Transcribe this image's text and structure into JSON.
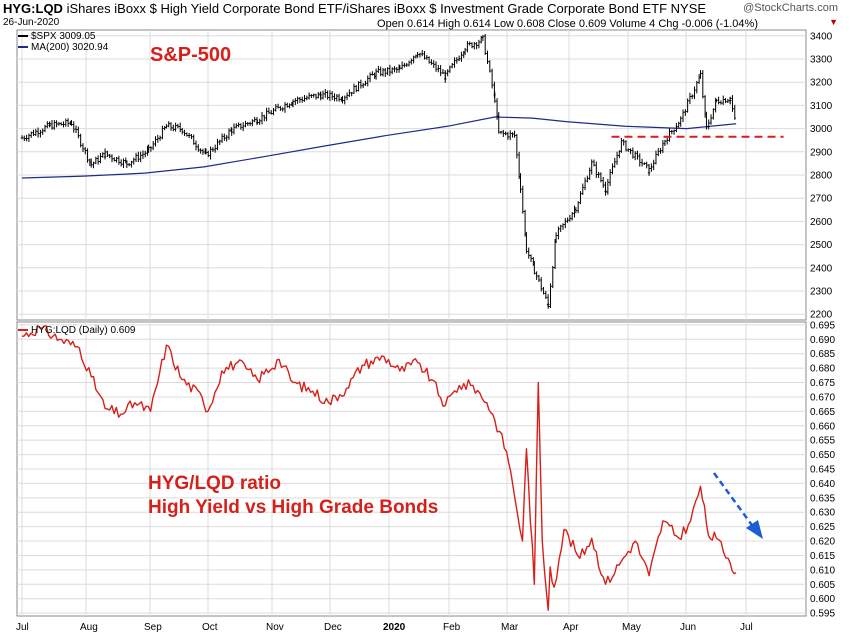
{
  "header": {
    "symbol": "HYG:LQD",
    "description": "iShares iBoxx $ High Yield Corporate Bond ETF/iShares iBoxx $ Investment Grade Corporate Bond ETF  NYSE",
    "date": "26-Jun-2020",
    "quote": "Open 0.614  High 0.614  Low 0.608  Close 0.609  Volume 4  Chg -0.006 (-1.04%)",
    "brand": "@StockCharts.com",
    "chg_marker": "▼"
  },
  "legend": {
    "spx": "$SPX 3009.05",
    "ma": "MA(200) 3020.94",
    "ratio": "HYG:LQD (Daily) 0.609"
  },
  "annotations": {
    "spx_label": "S&P-500",
    "ratio_line1": "HYG/LQD ratio",
    "ratio_line2": "High Yield vs High Grade Bonds"
  },
  "colors": {
    "spx": "#000000",
    "ma": "#1f2a8a",
    "ratio": "#d6201b",
    "support": "#d6201b",
    "arrow": "#1e5bd6",
    "grid": "#dcdcdc"
  },
  "chart_data": [
    {
      "type": "line",
      "name": "price-panel",
      "x_ticks": [
        "Jul",
        "Aug",
        "Sep",
        "Oct",
        "Nov",
        "Dec",
        "2020",
        "Feb",
        "Mar",
        "Apr",
        "May",
        "Jun",
        "Jul"
      ],
      "ylim": [
        2175,
        3425
      ],
      "y_ticks": [
        2200,
        2300,
        2400,
        2500,
        2600,
        2700,
        2800,
        2900,
        3000,
        3100,
        3200,
        3300,
        3400
      ],
      "series": [
        {
          "name": "$SPX",
          "style": "ohlc",
          "x": [
            "2019-07-01",
            "2019-07-15",
            "2019-07-26",
            "2019-08-05",
            "2019-08-12",
            "2019-08-23",
            "2019-09-03",
            "2019-09-12",
            "2019-09-20",
            "2019-10-02",
            "2019-10-15",
            "2019-10-28",
            "2019-11-15",
            "2019-11-29",
            "2019-12-10",
            "2019-12-27",
            "2020-01-08",
            "2020-01-17",
            "2020-01-31",
            "2020-02-10",
            "2020-02-19",
            "2020-02-25",
            "2020-02-27",
            "2020-03-06",
            "2020-03-09",
            "2020-03-12",
            "2020-03-16",
            "2020-03-23",
            "2020-03-27",
            "2020-04-06",
            "2020-04-14",
            "2020-04-21",
            "2020-04-29",
            "2020-05-13",
            "2020-05-21",
            "2020-05-29",
            "2020-06-08",
            "2020-06-11",
            "2020-06-16",
            "2020-06-23",
            "2020-06-26"
          ],
          "values": [
            2960,
            3013,
            3025,
            2845,
            2890,
            2850,
            2905,
            3010,
            2997,
            2885,
            2995,
            3040,
            3120,
            3145,
            3135,
            3240,
            3255,
            3330,
            3225,
            3350,
            3385,
            3130,
            2980,
            2970,
            2750,
            2480,
            2390,
            2240,
            2540,
            2660,
            2850,
            2740,
            2940,
            2820,
            2950,
            3040,
            3230,
            3000,
            3120,
            3130,
            3009
          ]
        },
        {
          "name": "MA(200)",
          "x": [
            "2019-07-01",
            "2019-08-01",
            "2019-09-01",
            "2019-10-01",
            "2019-11-01",
            "2019-12-01",
            "2020-01-01",
            "2020-02-01",
            "2020-02-25",
            "2020-03-15",
            "2020-04-01",
            "2020-05-01",
            "2020-06-01",
            "2020-06-26"
          ],
          "values": [
            2787,
            2795,
            2808,
            2835,
            2880,
            2925,
            2970,
            3010,
            3050,
            3045,
            3030,
            3010,
            3000,
            3021
          ]
        },
        {
          "name": "support",
          "style": "dashed",
          "x": [
            "2020-04-24",
            "2020-07-20"
          ],
          "values": [
            2965,
            2965
          ]
        }
      ]
    },
    {
      "type": "line",
      "name": "ratio-panel",
      "x_ticks": [
        "Jul",
        "Aug",
        "Sep",
        "Oct",
        "Nov",
        "Dec",
        "2020",
        "Feb",
        "Mar",
        "Apr",
        "May",
        "Jun",
        "Jul"
      ],
      "ylim": [
        0.594,
        0.696
      ],
      "y_ticks": [
        0.595,
        0.6,
        0.605,
        0.61,
        0.615,
        0.62,
        0.625,
        0.63,
        0.635,
        0.64,
        0.645,
        0.65,
        0.655,
        0.66,
        0.665,
        0.67,
        0.675,
        0.68,
        0.685,
        0.69,
        0.695
      ],
      "series": [
        {
          "name": "HYG:LQD (Daily)",
          "x": [
            "2019-07-01",
            "2019-07-10",
            "2019-07-20",
            "2019-07-30",
            "2019-08-05",
            "2019-08-12",
            "2019-08-20",
            "2019-08-27",
            "2019-09-04",
            "2019-09-12",
            "2019-09-20",
            "2019-09-30",
            "2019-10-03",
            "2019-10-10",
            "2019-10-18",
            "2019-10-28",
            "2019-11-08",
            "2019-11-15",
            "2019-11-25",
            "2019-12-03",
            "2019-12-12",
            "2019-12-20",
            "2019-12-31",
            "2020-01-08",
            "2020-01-17",
            "2020-01-24",
            "2020-01-31",
            "2020-02-07",
            "2020-02-14",
            "2020-02-21",
            "2020-02-25",
            "2020-03-02",
            "2020-03-05",
            "2020-03-10",
            "2020-03-12",
            "2020-03-16",
            "2020-03-18",
            "2020-03-20",
            "2020-03-23",
            "2020-03-24",
            "2020-03-26",
            "2020-03-31",
            "2020-04-08",
            "2020-04-14",
            "2020-04-21",
            "2020-04-29",
            "2020-05-06",
            "2020-05-13",
            "2020-05-20",
            "2020-05-28",
            "2020-06-03",
            "2020-06-08",
            "2020-06-12",
            "2020-06-16",
            "2020-06-22",
            "2020-06-26"
          ],
          "values": [
            0.691,
            0.694,
            0.69,
            0.687,
            0.677,
            0.666,
            0.664,
            0.668,
            0.665,
            0.688,
            0.676,
            0.67,
            0.665,
            0.679,
            0.682,
            0.676,
            0.683,
            0.675,
            0.672,
            0.668,
            0.673,
            0.681,
            0.684,
            0.679,
            0.682,
            0.676,
            0.667,
            0.674,
            0.674,
            0.668,
            0.662,
            0.651,
            0.64,
            0.62,
            0.652,
            0.605,
            0.675,
            0.62,
            0.596,
            0.611,
            0.604,
            0.624,
            0.614,
            0.621,
            0.605,
            0.613,
            0.62,
            0.608,
            0.627,
            0.621,
            0.627,
            0.639,
            0.622,
            0.621,
            0.614,
            0.609
          ]
        }
      ]
    }
  ]
}
